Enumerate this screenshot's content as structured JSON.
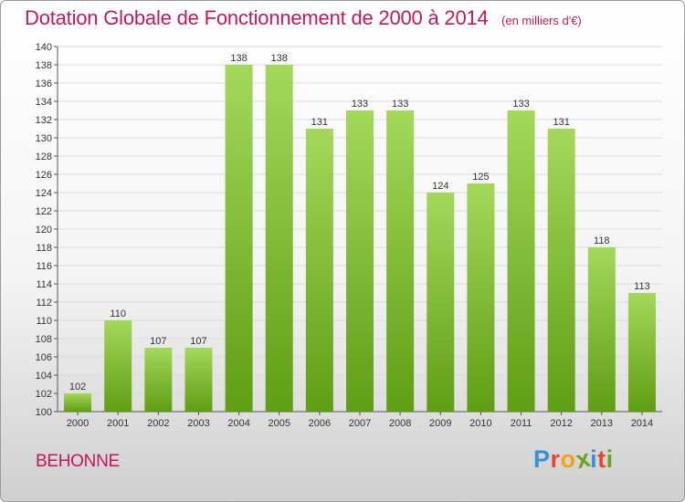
{
  "header": {
    "title": "Dotation Globale de Fonctionnement de 2000 à 2014",
    "unit": "(en milliers d'€)"
  },
  "footer": {
    "commune": "BEHONNE",
    "logo_letters": [
      "P",
      "r",
      "o",
      "x",
      "i",
      "t",
      "i"
    ],
    "logo_colors": [
      "#3b8fd9",
      "#e8472e",
      "#f2a11f",
      "#6aa31e",
      "#3b8fd9",
      "#e8472e",
      "#6aa31e"
    ]
  },
  "colors": {
    "bar_top": "#a4d85a",
    "bar_bottom": "#5f9e14",
    "title": "#c2185b",
    "grid": "#dcdcdc"
  },
  "chart_data": {
    "type": "bar",
    "categories": [
      "2000",
      "2001",
      "2002",
      "2003",
      "2004",
      "2005",
      "2006",
      "2007",
      "2008",
      "2009",
      "2010",
      "2011",
      "2012",
      "2013",
      "2014"
    ],
    "values": [
      102,
      110,
      107,
      107,
      138,
      138,
      131,
      133,
      133,
      124,
      125,
      133,
      131,
      118,
      113
    ],
    "data_labels": [
      "102",
      "110",
      "107",
      "107",
      "138",
      "138",
      "131",
      "133",
      "133",
      "124",
      "125",
      "133",
      "131",
      "118",
      "113"
    ],
    "yticks": [
      "100",
      "102",
      "104",
      "106",
      "108",
      "110",
      "112",
      "114",
      "116",
      "118",
      "120",
      "122",
      "124",
      "126",
      "128",
      "130",
      "132",
      "134",
      "136",
      "138",
      "140"
    ],
    "ylim": [
      100,
      140
    ],
    "grid": true
  }
}
